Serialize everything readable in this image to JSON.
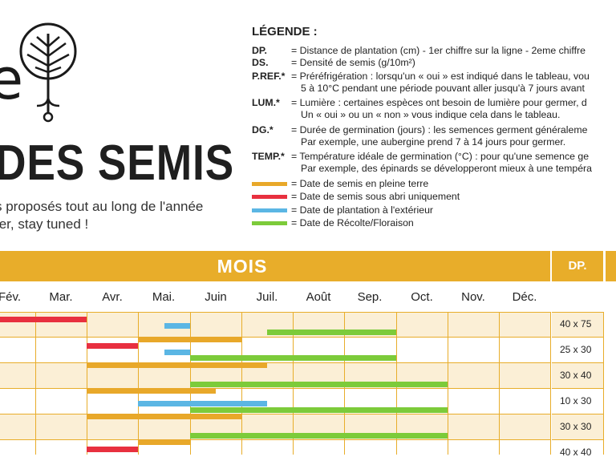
{
  "colors": {
    "accent": "#e8ad2a",
    "semis_pleine_terre": "#e8a82a",
    "semis_abri": "#e8303f",
    "plantation": "#5bb6e4",
    "recolte": "#7ccb3a",
    "row_tint": "#fbefd6"
  },
  "header": {
    "logo_letter": "e",
    "title": "DES SEMIS",
    "subtitle_line1": "s proposés tout au long de l'année",
    "subtitle_line2": "ter, stay tuned !"
  },
  "legend": {
    "title": "LÉGENDE :",
    "entries": [
      {
        "key": "DP.",
        "lines": [
          "= Distance de plantation (cm) - 1er chiffre sur la ligne - 2eme chiffre"
        ]
      },
      {
        "key": "DS.",
        "lines": [
          "= Densité de semis (g/10m²)"
        ]
      },
      {
        "key": "P.REF.*",
        "lines": [
          "= Préréfrigération : lorsqu'un « oui » est indiqué dans le tableau, vou",
          "5 à 10°C pendant une période pouvant aller jusqu'à 7 jours avant"
        ]
      },
      {
        "key": "LUM.*",
        "lines": [
          "= Lumière : certaines espèces ont besoin de lumière pour germer, d",
          "Un « oui » ou un « non » vous indique cela dans le tableau."
        ]
      },
      {
        "key": "DG.*",
        "lines": [
          "= Durée de germination (jours) : les semences germent généraleme",
          "Par exemple, une aubergine prend 7 à 14 jours pour germer."
        ]
      },
      {
        "key": "TEMP.*",
        "lines": [
          "= Température idéale de germination (°C) : pour qu'une semence ge",
          "Par exemple, des épinards se développeront mieux à une tempéra"
        ]
      }
    ],
    "swatches": [
      {
        "color": "#e8a82a",
        "label": "= Date de semis en pleine terre"
      },
      {
        "color": "#e8303f",
        "label": "= Date de semis sous abri uniquement"
      },
      {
        "color": "#5bb6e4",
        "label": "= Date de plantation à l'extérieur"
      },
      {
        "color": "#7ccb3a",
        "label": "= Date de Récolte/Floraison"
      }
    ]
  },
  "table": {
    "mois_label": "MOIS",
    "dp_header": "DP.",
    "months": [
      "Fév.",
      "Mar.",
      "Avr.",
      "Mai.",
      "Juin",
      "Juil.",
      "Août",
      "Sep.",
      "Oct.",
      "Nov.",
      "Déc."
    ],
    "rows": [
      {
        "dp": "40 x 75"
      },
      {
        "dp": "25 x 30"
      },
      {
        "dp": "30 x 40"
      },
      {
        "dp": "10 x 30"
      },
      {
        "dp": "30 x 30"
      },
      {
        "dp": "40 x 40"
      }
    ]
  }
}
